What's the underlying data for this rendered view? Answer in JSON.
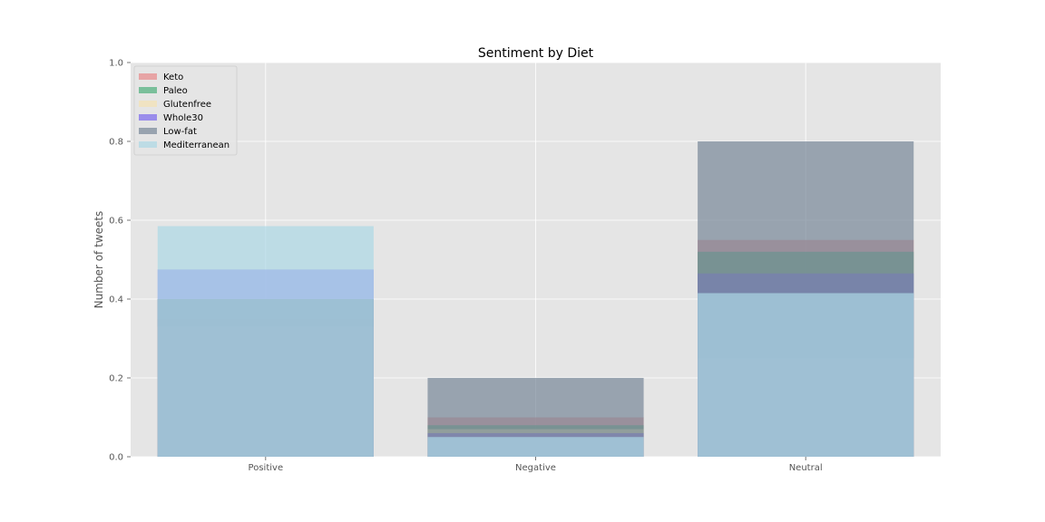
{
  "chart_data": {
    "type": "bar",
    "title": "Sentiment by Diet",
    "xlabel": "",
    "ylabel": "Number of tweets",
    "categories": [
      "Positive",
      "Negative",
      "Neutral"
    ],
    "ylim": [
      0,
      1.0
    ],
    "yticks": [
      "0.0",
      "0.2",
      "0.4",
      "0.6",
      "0.8",
      "1.0"
    ],
    "grid": true,
    "legend_position": "upper-left",
    "bars_overlapping": true,
    "series": [
      {
        "name": "Keto",
        "color": "#e8898a",
        "values": [
          0.35,
          0.1,
          0.55
        ]
      },
      {
        "name": "Paleo",
        "color": "#4daf7c",
        "values": [
          0.4,
          0.08,
          0.52
        ]
      },
      {
        "name": "Glutenfree",
        "color": "#f5e3b3",
        "values": [
          0.33,
          0.07,
          0.25
        ]
      },
      {
        "name": "Whole30",
        "color": "#7b68ee",
        "values": [
          0.475,
          0.06,
          0.465
        ]
      },
      {
        "name": "Low-fat",
        "color": "#778899",
        "values": [
          0.4,
          0.2,
          0.8
        ]
      },
      {
        "name": "Mediterranean",
        "color": "#add8e6",
        "values": [
          0.585,
          0.05,
          0.415
        ]
      }
    ]
  }
}
